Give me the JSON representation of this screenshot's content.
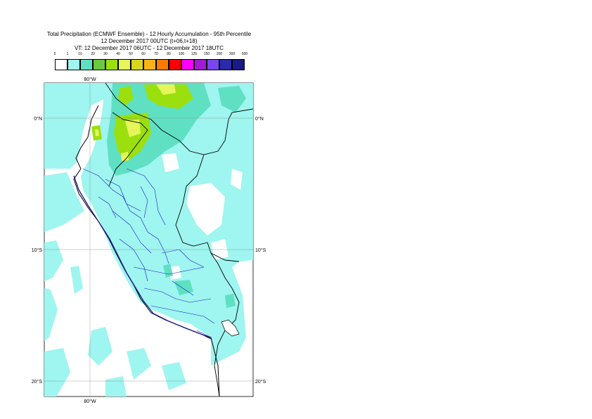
{
  "title": {
    "line1": "Total Precipitation (ECMWF Ensemble) - 12 Hourly Accumulation - 95th Percentile",
    "line2": "12 December 2017 00UTC (t+06,t+18)",
    "line3": "VT: 12 December 2017 06UTC - 12 December 2017 18UTC"
  },
  "legend": {
    "thresholds": [
      "0",
      "1",
      "10",
      "20",
      "30",
      "40",
      "50",
      "60",
      "70",
      "80",
      "100",
      "125",
      "150",
      "200",
      "300",
      "500"
    ],
    "colors": [
      "#ffffff",
      "#9ff5ef",
      "#5fe0c3",
      "#6ac93c",
      "#9be00e",
      "#e6f55a",
      "#d7d720",
      "#ffb31a",
      "#ff7a00",
      "#ff0000",
      "#ff00ff",
      "#a31ad6",
      "#7a46f0",
      "#2a2aaa",
      "#1a1a88"
    ]
  },
  "axes": {
    "lon_top": "80°W",
    "lon_bottom": "80°W",
    "lat_0_left": "0°N",
    "lat_0_right": "0°N",
    "lat_10_left": "10°S",
    "lat_10_right": "10°S",
    "lat_20_left": "20°S",
    "lat_20_right": "20°S"
  },
  "colors": {
    "light_precip": "#9ff5ef",
    "moderate_precip": "#5fe0c3",
    "heavy_precip": "#9be00e",
    "peak_precip": "#e6f55a",
    "coastline": "#000000",
    "admin_borders": "#1a1acc"
  }
}
